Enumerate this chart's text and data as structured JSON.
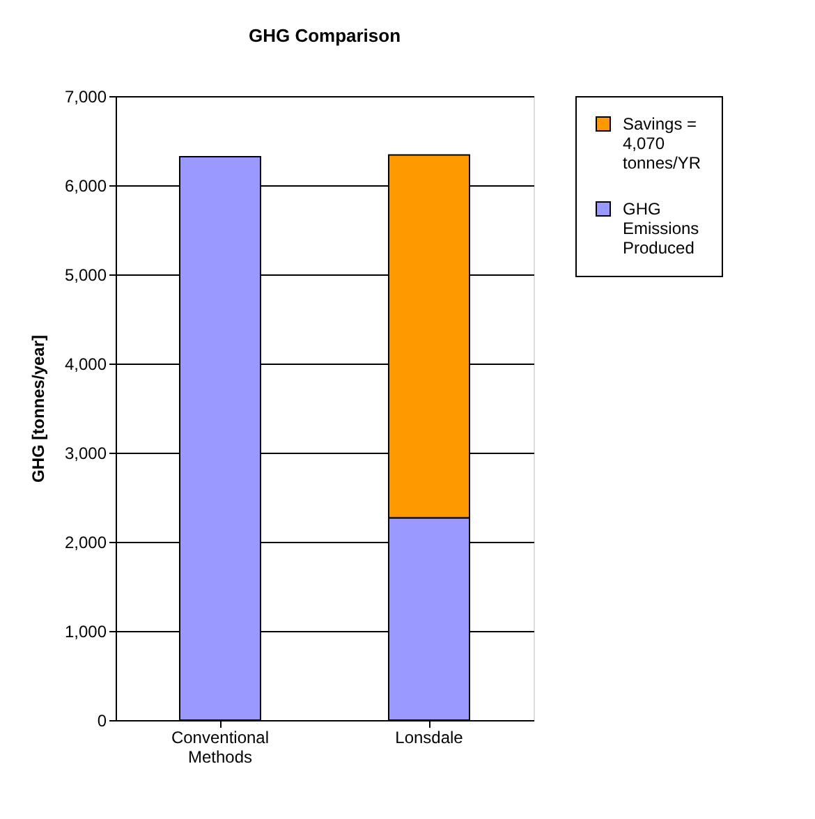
{
  "chart_data": {
    "type": "bar",
    "title": "GHG Comparison",
    "ylabel": "GHG [tonnes/year]",
    "categories": [
      "Conventional Methods",
      "Lonsdale"
    ],
    "stacked": true,
    "series": [
      {
        "name": "GHG Emissions Produced",
        "color": "#9999ff",
        "values": [
          6320,
          2270
        ]
      },
      {
        "name": "Savings = 4,070 tonnes/YR",
        "color": "#ff9900",
        "values": [
          null,
          4070
        ]
      }
    ],
    "ylim": [
      0,
      7000
    ],
    "yticks": [
      {
        "value": 0,
        "label": "0"
      },
      {
        "value": 1000,
        "label": "1,000"
      },
      {
        "value": 2000,
        "label": "2,000"
      },
      {
        "value": 3000,
        "label": "3,000"
      },
      {
        "value": 4000,
        "label": "4,000"
      },
      {
        "value": 5000,
        "label": "5,000"
      },
      {
        "value": 6000,
        "label": "6,000"
      },
      {
        "value": 7000,
        "label": "7,000"
      }
    ],
    "grid": "y",
    "legend": "right"
  }
}
